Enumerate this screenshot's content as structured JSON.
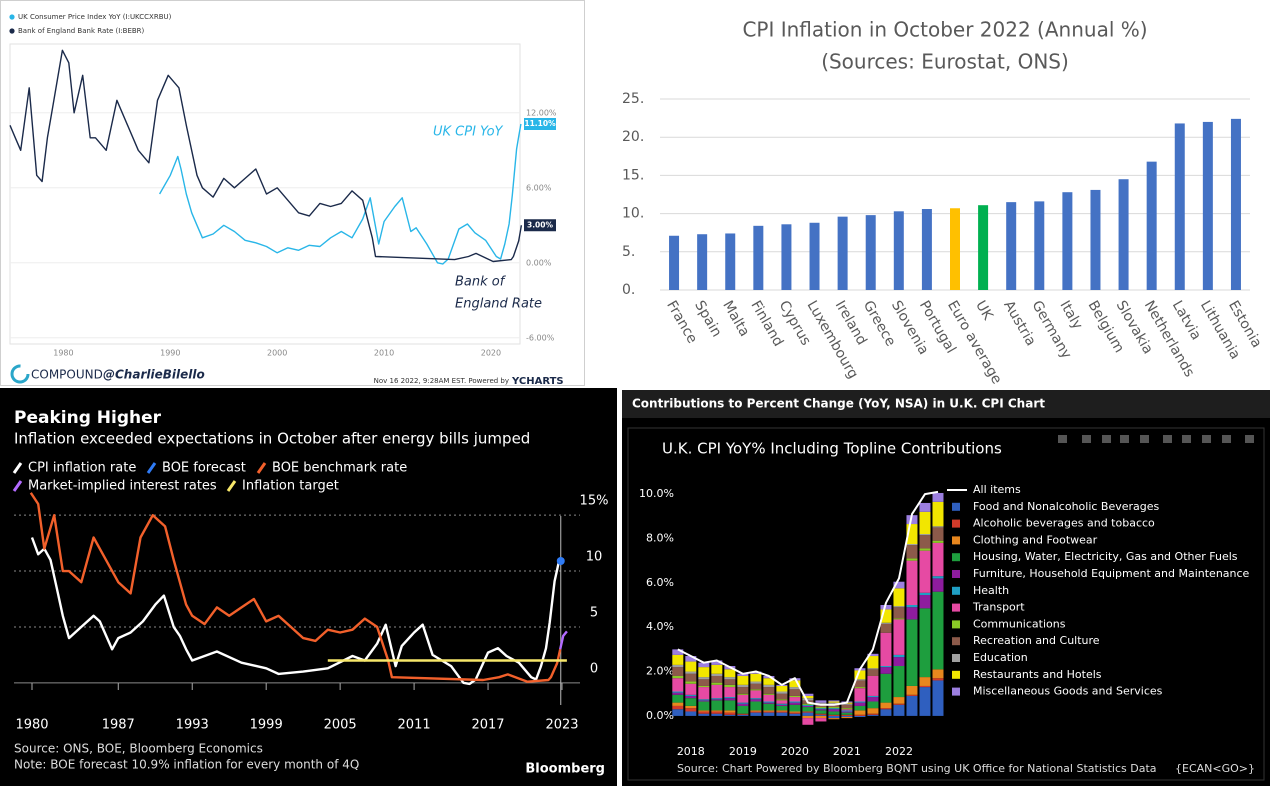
{
  "chart_data": [
    {
      "type": "line",
      "series": [
        {
          "name": "UK Consumer Price Index YoY (I:UKCCXRBU)",
          "color": "#29b6e8",
          "end_label": "11.10%",
          "x": [
            1989,
            1990,
            1990.7,
            1991,
            1991.5,
            1992,
            1992.5,
            1993,
            1994,
            1995,
            1996,
            1997,
            1998,
            1999,
            2000,
            2001,
            2002,
            2003,
            2004,
            2005,
            2006,
            2007,
            2008,
            2008.7,
            2009.5,
            2010,
            2011,
            2011.7,
            2012.5,
            2013,
            2014,
            2015,
            2015.5,
            2016,
            2017,
            2017.8,
            2018.5,
            2019.5,
            2020.5,
            2020.9,
            2021.3,
            2021.7,
            2022,
            2022.4,
            2022.6,
            2022.8
          ],
          "values": [
            5.5,
            7,
            8.5,
            7.5,
            5.5,
            4,
            3,
            2,
            2.3,
            3,
            2.5,
            1.8,
            1.6,
            1.3,
            0.8,
            1.2,
            1,
            1.4,
            1.3,
            2,
            2.5,
            2,
            3.5,
            5.2,
            1.5,
            3.3,
            4.5,
            5.2,
            2.5,
            2.8,
            1.5,
            0,
            -0.1,
            0.3,
            2.7,
            3.1,
            2.4,
            1.8,
            0.5,
            0.3,
            1.5,
            3.1,
            5.4,
            9.1,
            10.1,
            11.1
          ]
        },
        {
          "name": "Bank of England Bank Rate (I:BEBR)",
          "color": "#1b2a4a",
          "end_label": "3.00%",
          "x": [
            1975,
            1975.5,
            1976,
            1976.8,
            1977.5,
            1978,
            1978.5,
            1979,
            1979.9,
            1980.5,
            1981,
            1981.8,
            1982.5,
            1983,
            1984,
            1985,
            1986,
            1987,
            1988,
            1988.8,
            1989.8,
            1990.8,
            1991.5,
            1992.5,
            1993,
            1994,
            1995,
            1996,
            1997,
            1998,
            1999,
            2000,
            2001,
            2002,
            2003,
            2004,
            2005,
            2006,
            2007,
            2008,
            2008.9,
            2009.2,
            2016.6,
            2017.9,
            2018.6,
            2020.2,
            2021.9,
            2022.1,
            2022.4,
            2022.6,
            2022.85
          ],
          "values": [
            11,
            10,
            9,
            14,
            7,
            6.5,
            10,
            12.5,
            17,
            16,
            12,
            15,
            10,
            10,
            9,
            13,
            11,
            9,
            8,
            13,
            15,
            14,
            11,
            7,
            6,
            5.25,
            6.75,
            6,
            6.75,
            7.5,
            5.5,
            6,
            5,
            4,
            3.75,
            4.75,
            4.5,
            4.75,
            5.75,
            5,
            2,
            0.5,
            0.25,
            0.5,
            0.75,
            0.1,
            0.25,
            0.5,
            1.25,
            1.75,
            3
          ]
        }
      ],
      "xlim": [
        1975,
        2023
      ],
      "xticks": [
        1980,
        1990,
        2000,
        2010,
        2020
      ],
      "ylim": [
        -6.5,
        17.5
      ],
      "yticks": [
        {
          "value": 12,
          "label": "12.00%"
        },
        {
          "value": 6,
          "label": "6.00%"
        },
        {
          "value": 0,
          "label": "0.00%"
        },
        {
          "value": -6,
          "label": "-6.00%"
        }
      ],
      "grid": true,
      "annotations": [
        "UK CPI YoY",
        "Bank of",
        "England Rate"
      ],
      "brand": "COMPOUND",
      "handle": "@CharlieBilello",
      "timestamp": "Nov 16 2022, 9:28AM EST.  Powered by",
      "powered_brand": "YCHARTS"
    },
    {
      "type": "bar",
      "title": "CPI Inflation in October 2022 (Annual %)",
      "subtitle": "(Sources: Eurostat, ONS)",
      "categories": [
        "France",
        "Spain",
        "Malta",
        "Finland",
        "Cyprus",
        "Luxembourg",
        "Ireland",
        "Greece",
        "Slovenia",
        "Portugal",
        "Euro average",
        "UK",
        "Austria",
        "Germany",
        "Italy",
        "Belgium",
        "Slovakia",
        "Netherlands",
        "Latvia",
        "Lithuania",
        "Estonia"
      ],
      "values": [
        7.1,
        7.3,
        7.4,
        8.4,
        8.6,
        8.8,
        9.6,
        9.8,
        10.3,
        10.6,
        10.7,
        11.1,
        11.5,
        11.6,
        12.8,
        13.1,
        14.5,
        16.8,
        21.8,
        22.0,
        22.4
      ],
      "colors": [
        "#4472c4",
        "#4472c4",
        "#4472c4",
        "#4472c4",
        "#4472c4",
        "#4472c4",
        "#4472c4",
        "#4472c4",
        "#4472c4",
        "#4472c4",
        "#ffc000",
        "#00b050",
        "#4472c4",
        "#4472c4",
        "#4472c4",
        "#4472c4",
        "#4472c4",
        "#4472c4",
        "#4472c4",
        "#4472c4",
        "#4472c4"
      ],
      "ylim": [
        0,
        25
      ],
      "yticks": [
        {
          "value": 0,
          "label": "0."
        },
        {
          "value": 5,
          "label": "5."
        },
        {
          "value": 10,
          "label": "10."
        },
        {
          "value": 15,
          "label": "15."
        },
        {
          "value": 20,
          "label": "20."
        },
        {
          "value": 25,
          "label": "25."
        }
      ],
      "grid": true
    },
    {
      "type": "line",
      "title": "Peaking Higher",
      "subtitle": "Inflation exceeded expectations in October after energy bills jumped",
      "series": [
        {
          "name": "CPI inflation rate",
          "color": "#ffffff",
          "x": [
            1980,
            1980.5,
            1981,
            1981.5,
            1982,
            1982.5,
            1983,
            1984,
            1985,
            1985.5,
            1986.5,
            1987,
            1988,
            1989,
            1990,
            1990.7,
            1991.5,
            1992,
            1992.5,
            1993,
            1995,
            1997,
            1999,
            2000,
            2002,
            2004,
            2006,
            2007,
            2008,
            2008.7,
            2009.5,
            2010,
            2011,
            2011.7,
            2012.5,
            2014,
            2015,
            2015.5,
            2016,
            2017,
            2017.8,
            2018.5,
            2019.5,
            2020.5,
            2020.9,
            2021.3,
            2021.7,
            2022,
            2022.4,
            2022.6,
            2022.8
          ],
          "values": [
            13,
            11.5,
            12,
            11,
            8.5,
            6,
            4,
            5,
            6,
            5.5,
            3,
            4,
            4.5,
            5.5,
            7,
            7.8,
            5,
            4.2,
            3,
            2,
            2.8,
            1.8,
            1.3,
            0.8,
            1,
            1.3,
            2.4,
            2,
            3.5,
            5.2,
            1.5,
            3.3,
            4.5,
            5.2,
            2.5,
            1.5,
            0,
            -0.1,
            0.3,
            2.7,
            3.1,
            2.4,
            1.8,
            0.5,
            0.3,
            1.5,
            3.1,
            5.4,
            9.1,
            10.1,
            11.1
          ]
        },
        {
          "name": "BOE forecast",
          "color": "#2f7bf5",
          "marker": "dot",
          "x": [
            2022.9
          ],
          "values": [
            10.9
          ]
        },
        {
          "name": "BOE benchmark rate",
          "color": "#f2602b",
          "x": [
            1979.9,
            1980.5,
            1981,
            1981.8,
            1982.5,
            1983,
            1984,
            1985,
            1986,
            1987,
            1988,
            1988.8,
            1989.8,
            1990.8,
            1991.5,
            1992.5,
            1993,
            1994,
            1995,
            1996,
            1997,
            1998,
            1999,
            2000,
            2001,
            2002,
            2003,
            2004,
            2005,
            2006,
            2007,
            2008,
            2008.9,
            2009.2,
            2016.6,
            2017.9,
            2018.6,
            2020.2,
            2021.9,
            2022.1,
            2022.4,
            2022.6,
            2022.85
          ],
          "values": [
            17,
            16,
            12,
            15,
            10,
            10,
            9,
            13,
            11,
            9,
            8,
            13,
            15,
            14,
            11,
            7,
            6,
            5.25,
            6.75,
            6,
            6.75,
            7.5,
            5.5,
            6,
            5,
            4,
            3.75,
            4.75,
            4.5,
            4.75,
            5.75,
            5,
            2,
            0.5,
            0.25,
            0.5,
            0.75,
            0.1,
            0.25,
            0.5,
            1.25,
            1.75,
            3
          ]
        },
        {
          "name": "Market-implied interest rates",
          "color": "#b36bff",
          "x": [
            2022.85,
            2023.1,
            2023.4
          ],
          "values": [
            3,
            4.2,
            4.6
          ]
        },
        {
          "name": "Inflation target",
          "color": "#f7e76a",
          "x": [
            2004,
            2023.4
          ],
          "values": [
            2,
            2
          ]
        }
      ],
      "xlim": [
        1980,
        2023
      ],
      "xticks": [
        1980,
        1987,
        1993,
        1999,
        2005,
        2011,
        2017,
        2023
      ],
      "ylim": [
        -1,
        16
      ],
      "yticks": [
        0,
        5,
        10,
        {
          "value": 15,
          "label": "15%"
        }
      ],
      "grid": true,
      "source": "Source: ONS, BOE, Bloomberg Economics",
      "note": "Note: BOE forecast 10.9% inflation for every month of 4Q",
      "brand": "Bloomberg"
    },
    {
      "type": "bar",
      "stacked": true,
      "header": "Contributions to Percent Change (YoY, NSA) in U.K. CPI Chart",
      "title": "U.K. CPI YoY% Including Topline Contributions",
      "x": [
        2017.75,
        2018,
        2018.25,
        2018.5,
        2018.75,
        2019,
        2019.25,
        2019.5,
        2019.75,
        2020,
        2020.25,
        2020.5,
        2020.75,
        2021,
        2021.25,
        2021.5,
        2021.75,
        2022,
        2022.25,
        2022.5,
        2022.75
      ],
      "series": [
        {
          "name": "All items",
          "type": "line",
          "color": "#ffffff",
          "values": [
            3.0,
            2.7,
            2.4,
            2.5,
            2.2,
            1.9,
            2.0,
            1.8,
            1.4,
            1.7,
            0.6,
            0.5,
            0.5,
            0.6,
            2.1,
            3.0,
            5.1,
            6.2,
            9.1,
            10.0,
            10.1
          ]
        },
        {
          "name": "Food and Nonalcoholic Beverages",
          "color": "#2f5fbf",
          "values": [
            0.3,
            0.2,
            0.1,
            0.1,
            0.05,
            0.05,
            0.15,
            0.15,
            0.15,
            0.1,
            0.15,
            0.05,
            -0.1,
            -0.05,
            -0.05,
            0.05,
            0.3,
            0.5,
            0.9,
            1.3,
            1.6
          ]
        },
        {
          "name": "Alcoholic beverages and tobacco",
          "color": "#d23b2a",
          "values": [
            0.15,
            0.15,
            0.1,
            0.1,
            0.1,
            0.05,
            0.05,
            0.05,
            0.05,
            0.05,
            0.05,
            0.05,
            0.05,
            0.05,
            0.05,
            0.05,
            0.05,
            0.05,
            0.05,
            0.05,
            0.1
          ]
        },
        {
          "name": "Clothing and Footwear",
          "color": "#e8871e",
          "values": [
            0.15,
            0.1,
            0.05,
            0.05,
            0.1,
            0.0,
            0.05,
            0.05,
            0.05,
            0.05,
            -0.1,
            -0.1,
            -0.05,
            -0.05,
            0.2,
            0.25,
            0.25,
            0.3,
            0.4,
            0.4,
            0.4
          ]
        },
        {
          "name": "Housing, Water, Electricity, Gas and Other Fuels",
          "color": "#1e9e3e",
          "values": [
            0.35,
            0.35,
            0.4,
            0.45,
            0.45,
            0.35,
            0.4,
            0.3,
            0.2,
            0.3,
            0.2,
            0.15,
            0.15,
            0.1,
            0.2,
            0.3,
            1.3,
            1.4,
            3.0,
            3.1,
            3.5
          ]
        },
        {
          "name": "Furniture, Household Equipment and Maintenance",
          "color": "#8e1c9e",
          "values": [
            0.1,
            0.1,
            0.05,
            0.05,
            0.1,
            0.1,
            0.1,
            0.05,
            0.05,
            0.1,
            0.05,
            0.05,
            0.1,
            0.05,
            0.15,
            0.2,
            0.3,
            0.4,
            0.55,
            0.6,
            0.6
          ]
        },
        {
          "name": "Health",
          "color": "#1f9fc4",
          "values": [
            0.05,
            0.05,
            0.05,
            0.05,
            0.05,
            0.05,
            0.05,
            0.05,
            0.05,
            0.05,
            0.05,
            0.05,
            0.05,
            0.05,
            0.05,
            0.05,
            0.05,
            0.1,
            0.1,
            0.1,
            0.1
          ]
        },
        {
          "name": "Transport",
          "color": "#e64aa3",
          "values": [
            0.6,
            0.5,
            0.55,
            0.6,
            0.45,
            0.35,
            0.35,
            0.3,
            0.15,
            0.2,
            -0.3,
            -0.15,
            0.0,
            0.05,
            0.6,
            0.9,
            1.5,
            1.6,
            2.0,
            1.9,
            1.5
          ]
        },
        {
          "name": "Communications",
          "color": "#8ac926",
          "values": [
            0.1,
            0.1,
            0.05,
            0.1,
            0.1,
            0.05,
            0.05,
            0.05,
            0.05,
            0.05,
            0.05,
            0.05,
            0.05,
            0.05,
            0.05,
            0.0,
            0.0,
            0.05,
            0.1,
            0.1,
            0.1
          ]
        },
        {
          "name": "Recreation and Culture",
          "color": "#8c5a4a",
          "values": [
            0.4,
            0.35,
            0.3,
            0.3,
            0.25,
            0.3,
            0.25,
            0.3,
            0.25,
            0.3,
            0.15,
            0.15,
            0.15,
            0.15,
            0.3,
            0.3,
            0.4,
            0.5,
            0.6,
            0.6,
            0.6
          ]
        },
        {
          "name": "Education",
          "color": "#a0a0a0",
          "values": [
            0.1,
            0.1,
            0.1,
            0.1,
            0.1,
            0.1,
            0.1,
            0.1,
            0.1,
            0.1,
            0.1,
            0.05,
            0.05,
            0.05,
            0.05,
            0.05,
            0.05,
            0.05,
            0.05,
            0.05,
            0.05
          ]
        },
        {
          "name": "Restaurants and Hotels",
          "color": "#f2e600",
          "values": [
            0.45,
            0.45,
            0.45,
            0.4,
            0.35,
            0.4,
            0.35,
            0.3,
            0.25,
            0.3,
            0.1,
            0.0,
            0.05,
            0.05,
            0.4,
            0.55,
            0.6,
            0.8,
            0.9,
            1.0,
            1.1
          ]
        },
        {
          "name": "Miscellaneous Goods and Services",
          "color": "#9c7fe0",
          "values": [
            0.25,
            0.25,
            0.2,
            0.2,
            0.15,
            0.1,
            0.1,
            0.1,
            0.05,
            0.1,
            0.1,
            0.1,
            0.05,
            0.05,
            0.1,
            0.1,
            0.2,
            0.3,
            0.4,
            0.4,
            0.4
          ]
        }
      ],
      "xlim": [
        2017.6,
        2023
      ],
      "xticks": [
        2018,
        2019,
        2020,
        2021,
        2022
      ],
      "ylim": [
        -0.5,
        10.5
      ],
      "yticks": [
        {
          "value": 0,
          "label": "0.0%"
        },
        {
          "value": 2,
          "label": "2.0%"
        },
        {
          "value": 4,
          "label": "4.0%"
        },
        {
          "value": 6,
          "label": "6.0%"
        },
        {
          "value": 8,
          "label": "8.0%"
        },
        {
          "value": 10,
          "label": "10.0%"
        }
      ],
      "grid": false,
      "source": "Source: Chart Powered by Bloomberg BQNT using UK Office for National Statistics Data",
      "code": "{ECAN<GO>}"
    }
  ]
}
